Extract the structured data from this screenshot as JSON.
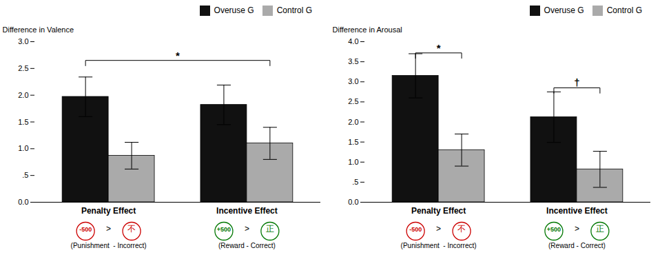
{
  "chart_data": [
    {
      "type": "bar",
      "ylabel": "Difference in Valence",
      "categories": [
        "Penalty Effect",
        "Incentive Effect"
      ],
      "series": [
        {
          "name": "Overuse G",
          "color": "#111111",
          "values": [
            1.97,
            1.82
          ],
          "errors": [
            0.37,
            0.37
          ]
        },
        {
          "name": "Control G",
          "color": "#aaaaaa",
          "values": [
            0.87,
            1.1
          ],
          "errors": [
            0.25,
            0.3
          ]
        }
      ],
      "ylim": [
        0.0,
        3.0
      ],
      "yticks": [
        {
          "value": 0.0,
          "label": "0.0"
        },
        {
          "value": 0.5,
          "label": ".5"
        },
        {
          "value": 1.0,
          "label": "1.0"
        },
        1.5,
        {
          "value": 2.0,
          "label": "2.0"
        },
        2.5,
        {
          "value": 3.0,
          "label": "3.0"
        }
      ],
      "grid": false,
      "legend": "upper right",
      "significance": [
        {
          "from": {
            "category": "Penalty Effect",
            "series": "Overuse G"
          },
          "to": {
            "category": "Incentive Effect",
            "series": "Control G"
          },
          "y": 2.65,
          "label": "*"
        }
      ],
      "annotations": [
        {
          "category": "Penalty Effect",
          "left": "-500",
          "symbol": ">",
          "right": "不",
          "label": "(Punishment  - Incorrect)",
          "color": "#cc0000"
        },
        {
          "category": "Incentive Effect",
          "left": "+500",
          "symbol": ">",
          "right": "正",
          "label": "(Reward - Correct)",
          "color": "#007700"
        }
      ]
    },
    {
      "type": "bar",
      "ylabel": "Difference in Arousal",
      "categories": [
        "Penalty Effect",
        "Incentive Effect"
      ],
      "series": [
        {
          "name": "Overuse G",
          "color": "#111111",
          "values": [
            3.15,
            2.12
          ],
          "errors": [
            0.55,
            0.63
          ]
        },
        {
          "name": "Control G",
          "color": "#aaaaaa",
          "values": [
            1.3,
            0.82
          ],
          "errors": [
            0.4,
            0.45
          ]
        }
      ],
      "ylim": [
        0.0,
        4.0
      ],
      "yticks": [
        {
          "value": 0.0,
          "label": "0.0"
        },
        {
          "value": 0.5,
          "label": ".5"
        },
        {
          "value": 1.0,
          "label": "1.0"
        },
        1.5,
        {
          "value": 2.0,
          "label": "2.0"
        },
        2.5,
        {
          "value": 3.0,
          "label": "3.0"
        },
        3.5,
        {
          "value": 4.0,
          "label": "4.0"
        }
      ],
      "grid": false,
      "legend": "upper right",
      "significance": [
        {
          "from": {
            "category": "Penalty Effect",
            "series": "Overuse G"
          },
          "to": {
            "category": "Penalty Effect",
            "series": "Control G"
          },
          "y": 3.72,
          "label": "*"
        },
        {
          "from": {
            "category": "Incentive Effect",
            "series": "Overuse G"
          },
          "to": {
            "category": "Incentive Effect",
            "series": "Control G"
          },
          "y": 2.85,
          "label": "†"
        }
      ],
      "annotations": [
        {
          "category": "Penalty Effect",
          "left": "-500",
          "symbol": ">",
          "right": "不",
          "label": "(Punishment  - Incorrect)",
          "color": "#cc0000"
        },
        {
          "category": "Incentive Effect",
          "left": "+500",
          "symbol": ">",
          "right": "正",
          "label": "(Reward - Correct)",
          "color": "#007700"
        }
      ]
    }
  ]
}
